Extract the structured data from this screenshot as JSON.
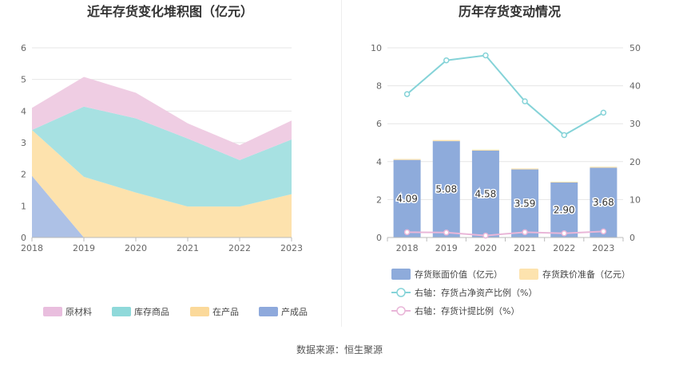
{
  "footer": {
    "source": "数据来源：恒生聚源"
  },
  "chart_data": [
    {
      "type": "area",
      "stacked": true,
      "title": "近年存货变化堆积图（亿元）",
      "categories": [
        "2018",
        "2019",
        "2020",
        "2021",
        "2022",
        "2023"
      ],
      "y_ticks": [
        "0",
        "1",
        "2",
        "3",
        "4",
        "5",
        "6"
      ],
      "ylim": [
        0,
        6
      ],
      "grid": true,
      "legend_position": "bottom",
      "series": [
        {
          "name": "产成品",
          "color": "#adc1e6",
          "values": [
            1.95,
            0.0,
            0.0,
            0.0,
            0.0,
            0.0
          ]
        },
        {
          "name": "在产品",
          "color": "#fde2ad",
          "values": [
            1.45,
            1.92,
            1.42,
            0.98,
            0.98,
            1.37
          ]
        },
        {
          "name": "库存商品",
          "color": "#a7e1e2",
          "values": [
            0.0,
            2.22,
            2.35,
            2.15,
            1.47,
            1.73
          ]
        },
        {
          "name": "原材料",
          "color": "#efcde3",
          "values": [
            0.7,
            0.94,
            0.81,
            0.48,
            0.47,
            0.6
          ]
        }
      ],
      "legend": [
        {
          "name": "原材料",
          "color": "#e9bede"
        },
        {
          "name": "库存商品",
          "color": "#8fd9da"
        },
        {
          "name": "在产品",
          "color": "#fbd99a"
        },
        {
          "name": "产成品",
          "color": "#8ea9dc"
        }
      ]
    },
    {
      "type": "bar+line",
      "title": "历年存货变动情况",
      "categories": [
        "2018",
        "2019",
        "2020",
        "2021",
        "2022",
        "2023"
      ],
      "y_left_ticks": [
        "0",
        "2",
        "4",
        "6",
        "8",
        "10"
      ],
      "y_right_ticks": [
        "0",
        "10",
        "20",
        "30",
        "40",
        "50"
      ],
      "ylim_left": [
        0,
        10
      ],
      "ylim_right": [
        0,
        50
      ],
      "grid": true,
      "legend_position": "bottom",
      "bars": {
        "name": "存货账面价值（亿元）",
        "color": "#8eabdb",
        "values": [
          4.09,
          5.08,
          4.58,
          3.59,
          2.9,
          3.68
        ],
        "labels": [
          "4.09",
          "5.08",
          "4.58",
          "3.59",
          "2.90",
          "3.68"
        ]
      },
      "bars_stack": {
        "name": "存货跌价准备（亿元）",
        "color": "#fde3ae",
        "values": [
          0.05,
          0.06,
          0.05,
          0.05,
          0.04,
          0.05
        ]
      },
      "lines": [
        {
          "name": "右轴：存货占净资产比例（%）",
          "color": "#85d3d8",
          "values": [
            37.8,
            46.7,
            48.0,
            35.9,
            27.0,
            32.9
          ]
        },
        {
          "name": "右轴：存货计提比例（%）",
          "color": "#e9b6d8",
          "values": [
            1.4,
            1.3,
            0.5,
            1.4,
            1.1,
            1.6
          ]
        }
      ]
    }
  ]
}
